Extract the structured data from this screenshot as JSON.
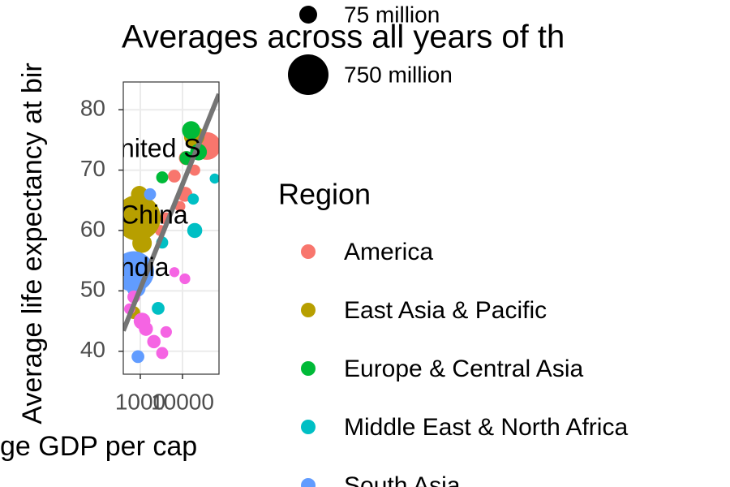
{
  "chart_data": {
    "type": "scatter",
    "title": "Averages across all years of th",
    "x_label": "ge GDP per cap",
    "y_label": "Average life expectancy at bir",
    "x_log": true,
    "xlim": [
      395,
      73300
    ],
    "ylim": [
      36.2,
      84.6
    ],
    "xticks": [
      1000,
      10000
    ],
    "yticks": [
      40,
      50,
      60,
      70,
      80
    ],
    "grid": true,
    "size_legend": {
      "values": [
        75,
        750
      ],
      "labels": [
        "75 million",
        "750 million"
      ]
    },
    "legend_title": "Region",
    "series": [
      {
        "name": "America",
        "color": "#F8766D",
        "x": [
          6400,
          11400,
          19400,
          8700,
          38000,
          4000,
          3000,
          12000
        ],
        "y": [
          69,
          66,
          70,
          64,
          74,
          62,
          60,
          72
        ],
        "size": [
          20,
          40,
          10,
          8,
          280,
          15,
          10,
          30
        ]
      },
      {
        "name": "East Asia & Pacific",
        "color": "#B79F00",
        "x": [
          870,
          1100,
          700,
          19000,
          950
        ],
        "y": [
          62.1,
          57.9,
          46.4,
          75.6,
          66
        ],
        "size": [
          1000,
          100,
          20,
          120,
          60
        ]
      },
      {
        "name": "Europe & Central Asia",
        "color": "#00BA38",
        "x": [
          16000,
          3300,
          24000,
          12500
        ],
        "y": [
          76.6,
          68.8,
          73,
          72
        ],
        "size": [
          80,
          15,
          60,
          30
        ]
      },
      {
        "name": "Middle East & North Africa",
        "color": "#00BFC4",
        "x": [
          58000,
          18000,
          19500,
          3300,
          2650
        ],
        "y": [
          68.6,
          65.2,
          60,
          58,
          47.1
        ],
        "size": [
          5,
          10,
          40,
          15,
          20
        ]
      },
      {
        "name": "South Asia",
        "color": "#619CFF",
        "x": [
          700,
          1700,
          880,
          800
        ],
        "y": [
          53.2,
          66,
          39.1,
          50.5
        ],
        "size": [
          750,
          15,
          20,
          90
        ]
      },
      {
        "color": "#F564E3",
        "x": [
          560,
          1360,
          3300,
          6430,
          11400,
          1100,
          4100,
          700,
          2100
        ],
        "y": [
          47,
          43.7,
          39.7,
          53.1,
          52,
          45,
          43.2,
          49,
          41.6
        ],
        "size": [
          10,
          30,
          15,
          5,
          8,
          60,
          12,
          20,
          25
        ]
      }
    ],
    "trend_line": {
      "color": "#757575",
      "x": [
        395,
        73300
      ],
      "y": [
        43.4,
        82.6
      ]
    },
    "annotations": [
      {
        "text": "nited S",
        "x": 395,
        "y": 73.3
      },
      {
        "text": "China",
        "x": 395,
        "y": 62.3
      },
      {
        "text": "ndia",
        "x": 395,
        "y": 53.6
      }
    ]
  }
}
